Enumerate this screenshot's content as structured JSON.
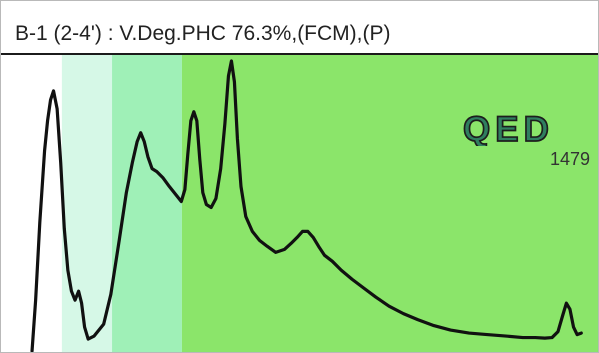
{
  "window": {
    "title": "B-1 (2-4') : V.Deg.PHC 76.3%,(FCM),(P)"
  },
  "brand": {
    "logo_text": "QED",
    "sample_number": "1479"
  },
  "colors": {
    "band_1": "#d6f8e7",
    "band_2": "#9ff0b7",
    "band_3": "#8be56a",
    "trace": "#111111",
    "logo_fill": "#2f7e5f",
    "logo_outline": "#1d1d1d"
  },
  "chart_data": {
    "type": "line",
    "title": "B-1 (2-4') : V.Deg.PHC 76.3%,(FCM),(P)",
    "xlabel": "",
    "ylabel": "",
    "xlim": [
      0,
      100
    ],
    "ylim": [
      0,
      100
    ],
    "grid": false,
    "bands": [
      {
        "x0": 10.2,
        "x1": 18.6,
        "color": "#d6f8e7"
      },
      {
        "x0": 18.6,
        "x1": 30.3,
        "color": "#9ff0b7"
      },
      {
        "x0": 30.3,
        "x1": 100.0,
        "color": "#8be56a"
      }
    ],
    "series": [
      {
        "name": "",
        "points": [
          [
            5.2,
            1
          ],
          [
            5.8,
            18
          ],
          [
            6.5,
            44
          ],
          [
            7.3,
            68
          ],
          [
            7.8,
            78
          ],
          [
            8.3,
            85
          ],
          [
            8.8,
            88
          ],
          [
            9.4,
            82
          ],
          [
            10.0,
            64
          ],
          [
            10.6,
            42
          ],
          [
            11.2,
            28
          ],
          [
            11.8,
            21
          ],
          [
            12.4,
            18
          ],
          [
            13.0,
            21
          ],
          [
            13.5,
            17
          ],
          [
            14.0,
            9
          ],
          [
            14.6,
            5
          ],
          [
            15.6,
            6
          ],
          [
            17.2,
            10
          ],
          [
            18.4,
            20
          ],
          [
            19.8,
            38
          ],
          [
            21.0,
            54
          ],
          [
            22.0,
            64
          ],
          [
            22.8,
            71
          ],
          [
            23.4,
            74
          ],
          [
            24.0,
            71
          ],
          [
            24.6,
            66
          ],
          [
            25.3,
            62
          ],
          [
            26.1,
            61
          ],
          [
            27.1,
            59
          ],
          [
            28.2,
            56
          ],
          [
            29.4,
            53
          ],
          [
            30.2,
            51
          ],
          [
            30.8,
            55
          ],
          [
            31.3,
            67
          ],
          [
            31.8,
            78
          ],
          [
            32.3,
            81
          ],
          [
            32.8,
            78
          ],
          [
            33.3,
            65
          ],
          [
            33.8,
            54
          ],
          [
            34.4,
            50
          ],
          [
            35.2,
            49
          ],
          [
            36.0,
            52
          ],
          [
            36.8,
            62
          ],
          [
            37.5,
            77
          ],
          [
            38.1,
            93
          ],
          [
            38.6,
            98
          ],
          [
            39.1,
            91
          ],
          [
            39.6,
            72
          ],
          [
            40.2,
            56
          ],
          [
            41.0,
            46
          ],
          [
            42.1,
            41
          ],
          [
            43.3,
            38
          ],
          [
            44.6,
            36
          ],
          [
            46.0,
            34
          ],
          [
            47.5,
            35
          ],
          [
            48.6,
            37
          ],
          [
            49.6,
            39
          ],
          [
            50.5,
            41
          ],
          [
            51.4,
            41
          ],
          [
            52.3,
            39
          ],
          [
            53.2,
            36
          ],
          [
            54.2,
            33
          ],
          [
            55.5,
            31
          ],
          [
            57.0,
            28
          ],
          [
            58.8,
            25
          ],
          [
            60.8,
            22
          ],
          [
            62.8,
            19
          ],
          [
            65.0,
            16
          ],
          [
            67.4,
            13.5
          ],
          [
            69.8,
            11.5
          ],
          [
            72.5,
            9.5
          ],
          [
            75.3,
            8
          ],
          [
            78.4,
            7
          ],
          [
            81.4,
            6.5
          ],
          [
            84.6,
            6
          ],
          [
            87.4,
            5.5
          ],
          [
            89.5,
            5.5
          ],
          [
            91.1,
            5.3
          ],
          [
            92.3,
            5.5
          ],
          [
            93.3,
            7.5
          ],
          [
            94.1,
            13
          ],
          [
            94.7,
            17
          ],
          [
            95.3,
            15
          ],
          [
            95.9,
            9
          ],
          [
            96.5,
            6.5
          ],
          [
            97.2,
            7
          ]
        ]
      }
    ]
  }
}
